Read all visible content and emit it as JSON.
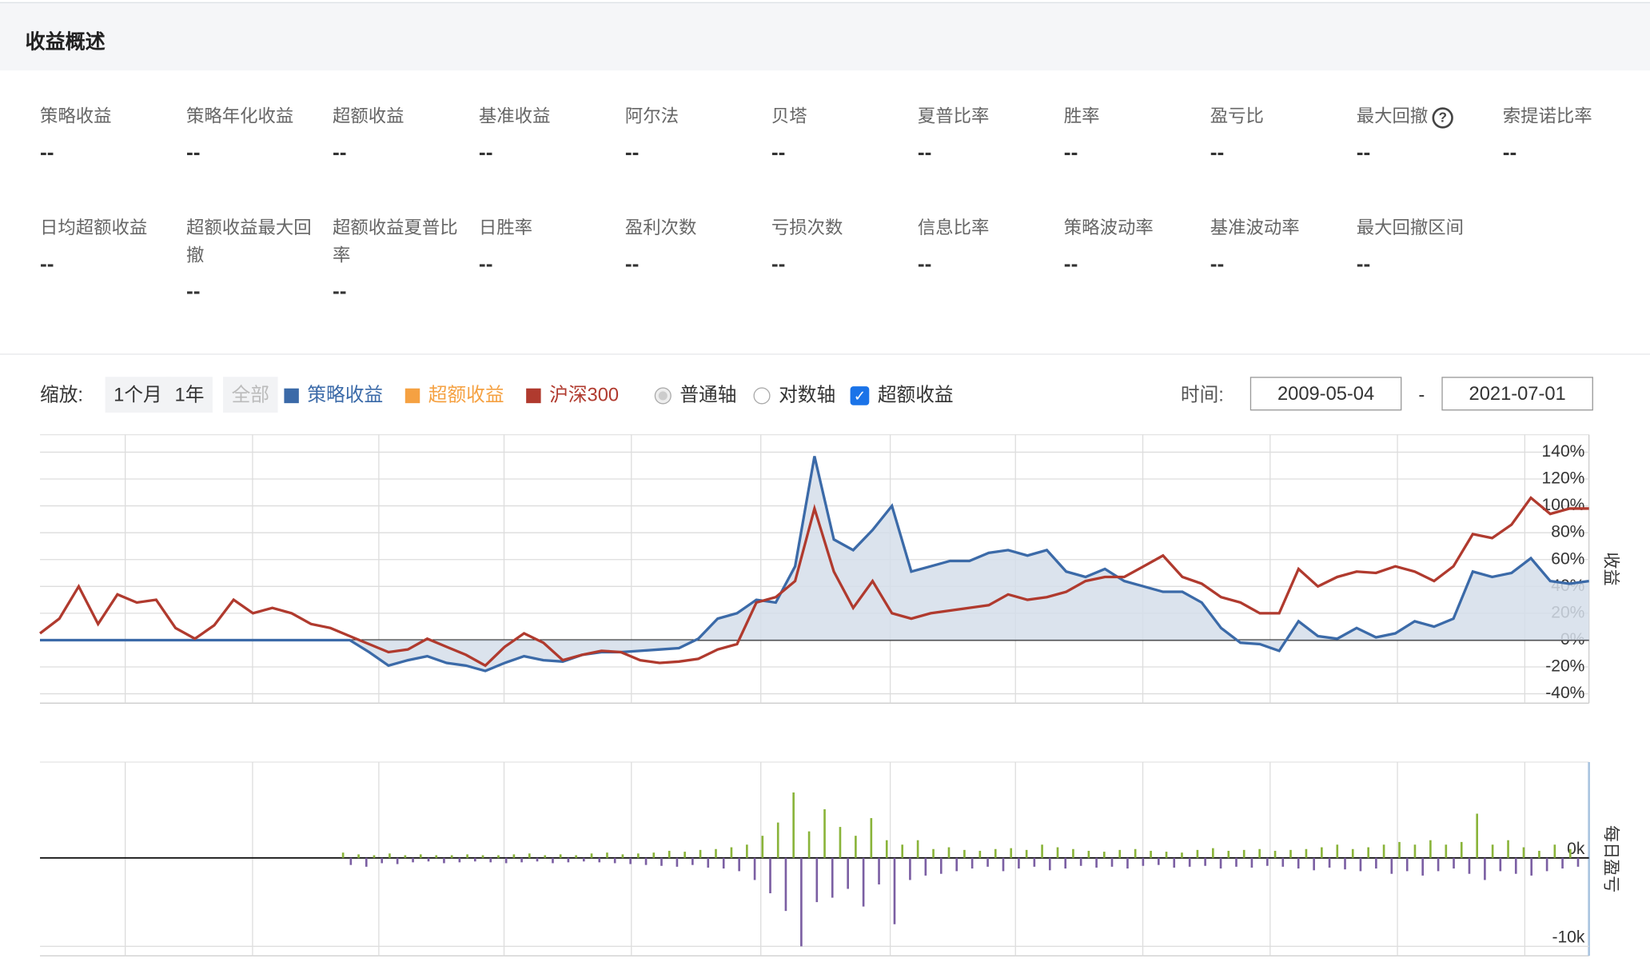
{
  "header": {
    "title": "收益概述"
  },
  "metrics": [
    [
      {
        "label": "策略收益",
        "value": "--"
      },
      {
        "label": "策略年化收益",
        "value": "--"
      },
      {
        "label": "超额收益",
        "value": "--"
      },
      {
        "label": "基准收益",
        "value": "--"
      },
      {
        "label": "阿尔法",
        "value": "--"
      },
      {
        "label": "贝塔",
        "value": "--"
      },
      {
        "label": "夏普比率",
        "value": "--"
      },
      {
        "label": "胜率",
        "value": "--"
      },
      {
        "label": "盈亏比",
        "value": "--"
      },
      {
        "label": "最大回撤",
        "value": "--",
        "help": "?"
      },
      {
        "label": "索提诺比率",
        "value": "--"
      }
    ],
    [
      {
        "label": "日均超额收益",
        "value": "--"
      },
      {
        "label": "超额收益最大回撤",
        "value": "--"
      },
      {
        "label": "超额收益夏普比率",
        "value": "--"
      },
      {
        "label": "日胜率",
        "value": "--"
      },
      {
        "label": "盈利次数",
        "value": "--"
      },
      {
        "label": "亏损次数",
        "value": "--"
      },
      {
        "label": "信息比率",
        "value": "--"
      },
      {
        "label": "策略波动率",
        "value": "--"
      },
      {
        "label": "基准波动率",
        "value": "--"
      },
      {
        "label": "最大回撤区间",
        "value": "--"
      }
    ]
  ],
  "controls": {
    "zoom_label": "缩放:",
    "zoom_buttons": [
      "1个月",
      "1年",
      "全部"
    ],
    "axis_options": [
      "普通轴",
      "对数轴"
    ],
    "excess_checkbox": "超额收益",
    "time_label": "时间:",
    "date_start": "2009-05-04",
    "date_sep": "-",
    "date_end": "2021-07-01"
  },
  "chart_data": [
    {
      "type": "line",
      "ylabel": "收益",
      "legend": [
        {
          "name": "策略收益",
          "color": "#3b6aa8"
        },
        {
          "name": "超额收益",
          "color": "#f5a142"
        },
        {
          "name": "沪深300",
          "color": "#b03a2e"
        }
      ],
      "series": [
        {
          "color": "#3b6aa8",
          "fill": "#d5deea",
          "values": [
            0,
            0,
            0,
            0,
            0,
            0,
            0,
            0,
            0,
            0,
            0,
            0,
            0,
            0,
            0,
            0,
            0,
            -9,
            -19,
            -15,
            -12,
            -17,
            -19,
            -23,
            -17,
            -12,
            -15,
            -16,
            -11,
            -9,
            -9,
            -8,
            -7,
            -6,
            1,
            16,
            20,
            30,
            28,
            55,
            137,
            75,
            67,
            82,
            100,
            51,
            55,
            59,
            59,
            65,
            67,
            63,
            67,
            51,
            47,
            53,
            44,
            40,
            36,
            36,
            28,
            9,
            -2,
            -3,
            -8,
            14,
            3,
            1,
            9,
            2,
            5,
            14,
            10,
            16,
            51,
            47,
            50,
            61,
            44,
            42,
            44
          ]
        },
        {
          "color": "#b03a2e",
          "values": [
            5,
            16,
            40,
            12,
            34,
            28,
            30,
            9,
            1,
            11,
            30,
            20,
            24,
            20,
            12,
            9,
            3,
            -3,
            -9,
            -7,
            1,
            -5,
            -11,
            -19,
            -5,
            5,
            -2,
            -15,
            -11,
            -8,
            -9,
            -15,
            -17,
            -16,
            -14,
            -7,
            -3,
            28,
            32,
            44,
            98,
            51,
            24,
            44,
            20,
            16,
            20,
            22,
            24,
            26,
            34,
            30,
            32,
            36,
            44,
            47,
            47,
            55,
            63,
            47,
            42,
            32,
            28,
            20,
            20,
            53,
            40,
            47,
            51,
            50,
            55,
            51,
            44,
            55,
            79,
            76,
            86,
            106,
            94,
            98,
            98
          ]
        }
      ],
      "ylim": [
        -47,
        153
      ],
      "yticks": [
        {
          "value": 140,
          "label": "140%"
        },
        {
          "value": 120,
          "label": "120%"
        },
        {
          "value": 100,
          "label": "100%"
        },
        {
          "value": 80,
          "label": "80%"
        },
        {
          "value": 60,
          "label": "60%"
        },
        {
          "value": 40,
          "label": "40%"
        },
        {
          "value": 20,
          "label": "20%"
        },
        {
          "value": 0,
          "label": "0%"
        },
        {
          "value": -20,
          "label": "-20%"
        },
        {
          "value": -40,
          "label": "-40%"
        }
      ],
      "grid": true
    },
    {
      "type": "bar",
      "ylabel": "每日盈亏",
      "series": [
        {
          "color": "#8ab43a",
          "values": [
            600,
            400,
            300,
            500,
            300,
            400,
            300,
            300,
            400,
            300,
            300,
            400,
            500,
            300,
            400,
            300,
            500,
            600,
            400,
            500,
            600,
            800,
            700,
            900,
            1000,
            1200,
            1500,
            2500,
            4000,
            7400,
            3000,
            5500,
            3500,
            2500,
            4500,
            2000,
            1500,
            2000,
            1000,
            1200,
            900,
            800,
            1000,
            1100,
            900,
            1500,
            1200,
            1000,
            800,
            700,
            900,
            1000,
            800,
            700,
            600,
            900,
            1100,
            800,
            900,
            1000,
            800,
            900,
            1000,
            1200,
            1500,
            1000,
            1200,
            1500,
            1800,
            1500,
            2000,
            1500,
            1800,
            5000,
            1500,
            2000,
            1200,
            800,
            1500,
            1000
          ]
        },
        {
          "color": "#7b5fa3",
          "values": [
            -800,
            -1000,
            -600,
            -700,
            -500,
            -400,
            -600,
            -500,
            -400,
            -500,
            -600,
            -500,
            -400,
            -600,
            -500,
            -400,
            -500,
            -600,
            -700,
            -800,
            -900,
            -1000,
            -800,
            -1100,
            -1200,
            -1500,
            -2500,
            -4000,
            -6000,
            -10000,
            -5000,
            -4500,
            -3500,
            -5500,
            -3000,
            -7500,
            -2500,
            -2000,
            -1800,
            -1500,
            -1200,
            -1000,
            -1500,
            -1200,
            -1000,
            -1400,
            -1200,
            -900,
            -1100,
            -1000,
            -1200,
            -900,
            -800,
            -1100,
            -1000,
            -900,
            -1200,
            -1000,
            -1100,
            -900,
            -1000,
            -1200,
            -1400,
            -1100,
            -1300,
            -1500,
            -1200,
            -1800,
            -1500,
            -2000,
            -1500,
            -1200,
            -1800,
            -2500,
            -1500,
            -1800,
            -2000,
            -1500,
            -1200,
            -1000
          ]
        }
      ],
      "ylim": [
        -11071,
        10833
      ],
      "yticks": [
        {
          "value": 0,
          "label": "0k"
        },
        {
          "value": -10000,
          "label": "-10k"
        }
      ],
      "grid": true
    }
  ]
}
